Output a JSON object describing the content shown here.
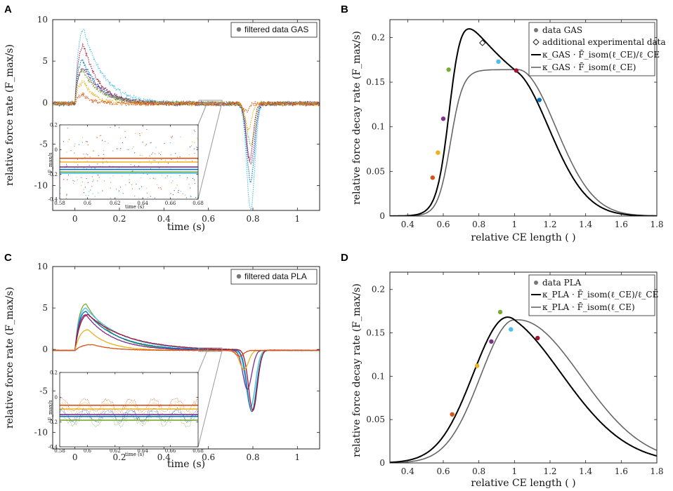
{
  "figure": {
    "colors": {
      "blue": "#0072BD",
      "orange": "#D95319",
      "yellow": "#EDB120",
      "purple": "#7E2F8E",
      "green": "#77AC30",
      "cyan": "#4DBEEE",
      "crimson": "#A2142F",
      "black": "#000000",
      "gray": "#666666",
      "datagray": "#777777"
    }
  },
  "chart_data": [
    {
      "panel": "A",
      "type": "line",
      "xlabel": "time (s)",
      "ylabel": "relative force rate (F_max/s)",
      "xlim": [
        -0.1,
        1.1
      ],
      "ylim": [
        -13,
        10
      ],
      "xticks": [
        0,
        0.2,
        0.4,
        0.6,
        0.8,
        1
      ],
      "xtick_labels": [
        "0",
        "0.2",
        "0.4",
        "0.6",
        "0.8",
        "1"
      ],
      "yticks": [
        -10,
        -5,
        0,
        5,
        10
      ],
      "ytick_labels": [
        "-10",
        "-5",
        "0",
        "5",
        "10"
      ],
      "legend": [
        "filtered data GAS"
      ],
      "series": [
        {
          "name": "cyan",
          "color": "cyan",
          "rise_peak": 9.0,
          "rise_t": 0.04,
          "rise_tau": 0.09,
          "drop_peak": -12.8,
          "drop_t": 0.79,
          "drop_w": 0.025
        },
        {
          "name": "blue",
          "color": "blue",
          "rise_peak": 5.2,
          "rise_t": 0.035,
          "rise_tau": 0.08,
          "drop_peak": -9.3,
          "drop_t": 0.79,
          "drop_w": 0.025
        },
        {
          "name": "crimson",
          "color": "crimson",
          "rise_peak": 7.0,
          "rise_t": 0.04,
          "rise_tau": 0.07,
          "drop_peak": -6.8,
          "drop_t": 0.785,
          "drop_w": 0.022
        },
        {
          "name": "purple",
          "color": "purple",
          "rise_peak": 4.3,
          "rise_t": 0.04,
          "rise_tau": 0.08,
          "drop_peak": -7.4,
          "drop_t": 0.79,
          "drop_w": 0.024
        },
        {
          "name": "green",
          "color": "green",
          "rise_peak": 4.0,
          "rise_t": 0.035,
          "rise_tau": 0.08,
          "drop_peak": -5.0,
          "drop_t": 0.79,
          "drop_w": 0.024
        },
        {
          "name": "yellow",
          "color": "yellow",
          "rise_peak": 2.6,
          "rise_t": 0.04,
          "rise_tau": 0.05,
          "drop_peak": -3.2,
          "drop_t": 0.78,
          "drop_w": 0.02
        },
        {
          "name": "orange",
          "color": "orange",
          "rise_peak": 1.1,
          "rise_t": 0.035,
          "rise_tau": 0.04,
          "drop_peak": -0.9,
          "drop_t": 0.77,
          "drop_w": 0.018
        }
      ],
      "inset": {
        "xlabel": "time (s)",
        "ylabel": "F_max/s",
        "xlim": [
          0.58,
          0.68
        ],
        "ylim": [
          -0.4,
          0.2
        ],
        "xticks": [
          0.58,
          0.6,
          0.62,
          0.64,
          0.66,
          0.68
        ],
        "xtick_labels": [
          "0.58",
          "0.6",
          "0.62",
          "0.64",
          "0.66",
          "0.68"
        ],
        "yticks": [
          -0.4,
          -0.2,
          0,
          0.2
        ],
        "ytick_labels": [
          "-0.4",
          "-0.2",
          "0",
          "0.2"
        ],
        "means": [
          {
            "color": "orange",
            "value": -0.07
          },
          {
            "color": "yellow",
            "value": -0.1
          },
          {
            "color": "purple",
            "value": -0.14
          },
          {
            "color": "blue",
            "value": -0.16
          },
          {
            "color": "green",
            "value": -0.18
          },
          {
            "color": "cyan",
            "value": -0.19
          }
        ]
      }
    },
    {
      "panel": "B",
      "type": "line",
      "xlabel": "relative CE length ( )",
      "ylabel": "relative force decay rate (F_max/s)",
      "xlim": [
        0.3,
        1.8
      ],
      "ylim": [
        0,
        0.22
      ],
      "xticks": [
        0.4,
        0.6,
        0.8,
        1,
        1.2,
        1.4,
        1.6,
        1.8
      ],
      "xtick_labels": [
        "0.4",
        "0.6",
        "0.8",
        "1",
        "1.2",
        "1.4",
        "1.6",
        "1.8"
      ],
      "yticks": [
        0,
        0.05,
        0.1,
        0.15,
        0.2
      ],
      "ytick_labels": [
        "0",
        "0.05",
        "0.1",
        "0.15",
        "0.2"
      ],
      "legend": [
        "data GAS",
        "additional experimental data",
        "κ_GAS · F̄_isom(ℓ_CE)/ℓ_CE",
        "κ_GAS · F̄_isom(ℓ_CE)"
      ],
      "points": [
        {
          "x": 0.54,
          "y": 0.043,
          "color": "orange"
        },
        {
          "x": 0.57,
          "y": 0.071,
          "color": "yellow"
        },
        {
          "x": 0.6,
          "y": 0.109,
          "color": "purple"
        },
        {
          "x": 0.63,
          "y": 0.164,
          "color": "green"
        },
        {
          "x": 0.91,
          "y": 0.173,
          "color": "cyan"
        },
        {
          "x": 1.01,
          "y": 0.163,
          "color": "crimson"
        },
        {
          "x": 1.14,
          "y": 0.13,
          "color": "blue"
        }
      ],
      "extra_points": [
        {
          "x": 0.82,
          "y": 0.194
        }
      ],
      "kappa": 0.164,
      "asc_start": 0.5,
      "asc_width": 0.15,
      "plat_end": 1.0
    },
    {
      "panel": "C",
      "type": "line",
      "xlabel": "time (s)",
      "ylabel": "relative force rate (F_max/s)",
      "xlim": [
        -0.1,
        1.1
      ],
      "ylim": [
        -12,
        10
      ],
      "xticks": [
        0,
        0.2,
        0.4,
        0.6,
        0.8,
        1
      ],
      "xtick_labels": [
        "0",
        "0.2",
        "0.4",
        "0.6",
        "0.8",
        "1"
      ],
      "yticks": [
        -10,
        -5,
        0,
        5,
        10
      ],
      "ytick_labels": [
        "-10",
        "-5",
        "0",
        "5",
        "10"
      ],
      "legend": [
        "filtered data PLA"
      ],
      "series": [
        {
          "name": "green",
          "color": "green",
          "rise_peak": 5.6,
          "rise_t": 0.05,
          "rise_tau": 0.12,
          "drop_peak": -6.8,
          "drop_t": 0.79,
          "drop_w": 0.03
        },
        {
          "name": "cyan",
          "color": "cyan",
          "rise_peak": 5.1,
          "rise_t": 0.05,
          "rise_tau": 0.16,
          "drop_peak": -6.8,
          "drop_t": 0.79,
          "drop_w": 0.03
        },
        {
          "name": "blue",
          "color": "blue",
          "rise_peak": 4.7,
          "rise_t": 0.05,
          "rise_tau": 0.14,
          "drop_peak": -7.4,
          "drop_t": 0.795,
          "drop_w": 0.03
        },
        {
          "name": "purple",
          "color": "purple",
          "rise_peak": 4.3,
          "rise_t": 0.05,
          "rise_tau": 0.12,
          "drop_peak": -4.7,
          "drop_t": 0.775,
          "drop_w": 0.028
        },
        {
          "name": "crimson",
          "color": "crimson",
          "rise_peak": 4.3,
          "rise_t": 0.06,
          "rise_tau": 0.18,
          "drop_peak": -7.3,
          "drop_t": 0.8,
          "drop_w": 0.028
        },
        {
          "name": "yellow",
          "color": "yellow",
          "rise_peak": 2.5,
          "rise_t": 0.06,
          "rise_tau": 0.09,
          "drop_peak": -2.3,
          "drop_t": 0.76,
          "drop_w": 0.028
        },
        {
          "name": "orange",
          "color": "orange",
          "rise_peak": 0.7,
          "rise_t": 0.08,
          "rise_tau": 0.09,
          "drop_peak": -0.7,
          "drop_t": 0.74,
          "drop_w": 0.025
        }
      ],
      "inset": {
        "xlabel": "time (s)",
        "ylabel": "F_max/s",
        "xlim": [
          0.58,
          0.68
        ],
        "ylim": [
          -0.4,
          0.2
        ],
        "xticks": [
          0.58,
          0.6,
          0.62,
          0.64,
          0.66,
          0.68
        ],
        "xtick_labels": [
          "0.58",
          "0.6",
          "0.62",
          "0.64",
          "0.66",
          "0.68"
        ],
        "yticks": [
          -0.4,
          -0.2,
          0,
          0.2
        ],
        "ytick_labels": [
          "-0.4",
          "-0.2",
          "0",
          "0.2"
        ],
        "means": [
          {
            "color": "orange",
            "value": -0.065
          },
          {
            "color": "yellow",
            "value": -0.095
          },
          {
            "color": "purple",
            "value": -0.14
          },
          {
            "color": "blue",
            "value": -0.155
          },
          {
            "color": "green",
            "value": -0.185
          }
        ]
      }
    },
    {
      "panel": "D",
      "type": "line",
      "xlabel": "relative CE length ( )",
      "ylabel": "relative force decay rate (F_max/s)",
      "xlim": [
        0.3,
        1.8
      ],
      "ylim": [
        0,
        0.22
      ],
      "xticks": [
        0.4,
        0.6,
        0.8,
        1,
        1.2,
        1.4,
        1.6,
        1.8
      ],
      "xtick_labels": [
        "0.4",
        "0.6",
        "0.8",
        "1",
        "1.2",
        "1.4",
        "1.6",
        "1.8"
      ],
      "yticks": [
        0,
        0.05,
        0.1,
        0.15,
        0.2
      ],
      "ytick_labels": [
        "0",
        "0.05",
        "0.1",
        "0.15",
        "0.2"
      ],
      "legend": [
        "data PLA",
        "κ_PLA · F̄_isom(ℓ_CE)/ℓ_CE",
        "κ_PLA · F̄_isom(ℓ_CE)"
      ],
      "points": [
        {
          "x": 0.65,
          "y": 0.056,
          "color": "orange"
        },
        {
          "x": 0.79,
          "y": 0.112,
          "color": "yellow"
        },
        {
          "x": 0.87,
          "y": 0.14,
          "color": "purple"
        },
        {
          "x": 0.92,
          "y": 0.174,
          "color": "green"
        },
        {
          "x": 0.98,
          "y": 0.154,
          "color": "cyan"
        },
        {
          "x": 1.13,
          "y": 0.144,
          "color": "crimson"
        }
      ],
      "kappa": 0.165
    }
  ]
}
